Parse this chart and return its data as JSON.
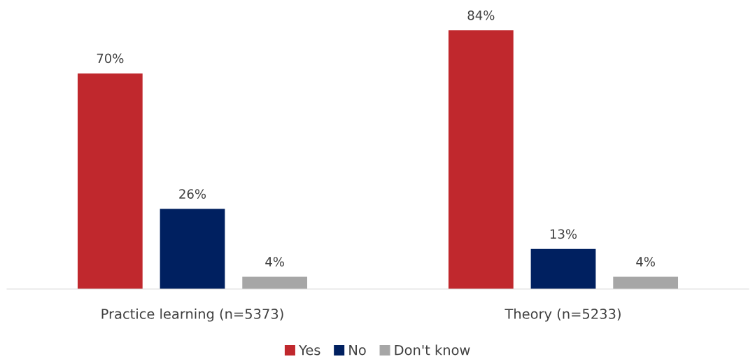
{
  "chart_data": {
    "type": "bar",
    "categories": [
      "Practice learning (n=5373)",
      "Theory (n=5233)"
    ],
    "series": [
      {
        "name": "Yes",
        "color": "#c0282d",
        "values": [
          70,
          84
        ],
        "value_labels": [
          "70%",
          "84%"
        ]
      },
      {
        "name": "No",
        "color": "#002060",
        "values": [
          26,
          13
        ],
        "value_labels": [
          "26%",
          "13%"
        ]
      },
      {
        "name": "Don't know",
        "color": "#a6a6a6",
        "values": [
          4,
          4
        ],
        "value_labels": [
          "4%",
          "4%"
        ]
      }
    ],
    "grid": false,
    "legend": "bottom",
    "tick_labels": "x"
  }
}
